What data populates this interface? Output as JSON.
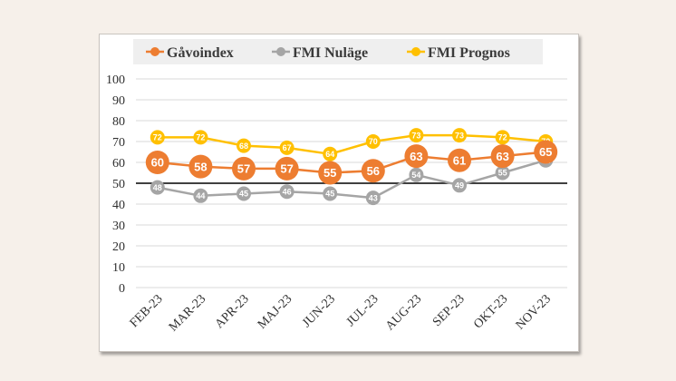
{
  "chart_data": {
    "type": "line",
    "categories": [
      "FEB-23",
      "MAR-23",
      "APR-23",
      "MAJ-23",
      "JUN-23",
      "JUL-23",
      "AUG-23",
      "SEP-23",
      "OKT-23",
      "NOV-23"
    ],
    "series": [
      {
        "name": "Gåvoindex",
        "color": "#ed7d31",
        "values": [
          60,
          58,
          57,
          57,
          55,
          56,
          63,
          61,
          63,
          65
        ]
      },
      {
        "name": "FMI Nuläge",
        "color": "#a5a5a5",
        "values": [
          48,
          44,
          45,
          46,
          45,
          43,
          54,
          49,
          55,
          61
        ]
      },
      {
        "name": "FMI Prognos",
        "color": "#ffc000",
        "values": [
          72,
          72,
          68,
          67,
          64,
          70,
          73,
          73,
          72,
          70
        ]
      }
    ],
    "ylim": [
      0,
      100
    ],
    "yticks": [
      0,
      10,
      20,
      30,
      40,
      50,
      60,
      70,
      80,
      90,
      100
    ],
    "reference_line": 50,
    "grid": true,
    "legend_position": "top"
  }
}
